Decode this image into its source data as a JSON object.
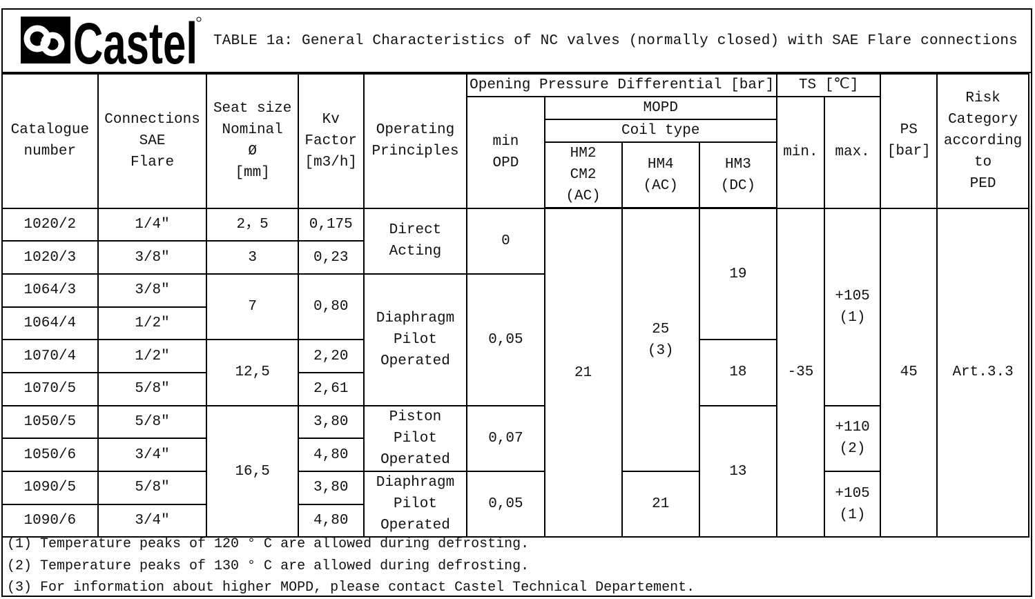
{
  "logo": {
    "text": "Castel"
  },
  "title": "TABLE 1a: General Characteristics of NC valves (normally closed) with SAE Flare connections",
  "headers": {
    "catalogue": "Catalogue\nnumber",
    "connections": "Connections\nSAE\nFlare",
    "seat": "Seat size\nNominal\nØ\n[mm]",
    "kv": "Kv\nFactor\n[m3/h]",
    "operating": "Operating\nPrinciples",
    "opd": "Opening Pressure Differential [bar]",
    "min_opd": "min\nOPD",
    "mopd": "MOPD",
    "coil_type": "Coil type",
    "hm2": "HM2\nCM2\n(AC)",
    "hm4": "HM4\n(AC)",
    "hm3": "HM3\n(DC)",
    "ts": "TS [℃]",
    "ts_min": "min.",
    "ts_max": "max.",
    "ps": "PS\n[bar]",
    "risk": "Risk\nCategory\naccording\nto\nPED"
  },
  "rows": [
    {
      "catalogue": "1020/2",
      "connection": "1/4″",
      "kv": "0,175"
    },
    {
      "catalogue": "1020/3",
      "connection": "3/8″",
      "kv": "0,23"
    },
    {
      "catalogue": "1064/3",
      "connection": "3/8″"
    },
    {
      "catalogue": "1064/4",
      "connection": "1/2″"
    },
    {
      "catalogue": "1070/4",
      "connection": "1/2″",
      "kv": "2,20"
    },
    {
      "catalogue": "1070/5",
      "connection": "5/8″",
      "kv": "2,61"
    },
    {
      "catalogue": "1050/5",
      "connection": "5/8″",
      "kv": "3,80"
    },
    {
      "catalogue": "1050/6",
      "connection": "3/4″",
      "kv": "4,80"
    },
    {
      "catalogue": "1090/5",
      "connection": "5/8″",
      "kv": "3,80"
    },
    {
      "catalogue": "1090/6",
      "connection": "3/4″",
      "kv": "4,80"
    }
  ],
  "merged": {
    "seat": [
      "2，5",
      "3",
      "7",
      "12,5",
      "16,5"
    ],
    "kv_1064": "0,80",
    "operating": [
      "Direct\nActing",
      "Diaphragm\nPilot\nOperated",
      "Piston\nPilot\nOperated",
      "Diaphragm\nPilot\nOperated"
    ],
    "min_opd": [
      "0",
      "0,05",
      "0,07",
      "0,05"
    ],
    "hm2": "21",
    "hm4": [
      "25\n(3)",
      "21"
    ],
    "hm3": [
      "19",
      "18",
      "13"
    ],
    "ts_min": "-35",
    "ts_max": [
      "+105\n(1)",
      "+110\n(2)",
      "+105\n(1)"
    ],
    "ps": "45",
    "risk": "Art.3.3"
  },
  "notes": [
    "(1) Temperature peaks of 120 ° C are allowed during defrosting.",
    "(2) Temperature peaks of 130 ° C are allowed during defrosting.",
    "(3) For information about higher MOPD, please contact Castel Technical Departement."
  ]
}
